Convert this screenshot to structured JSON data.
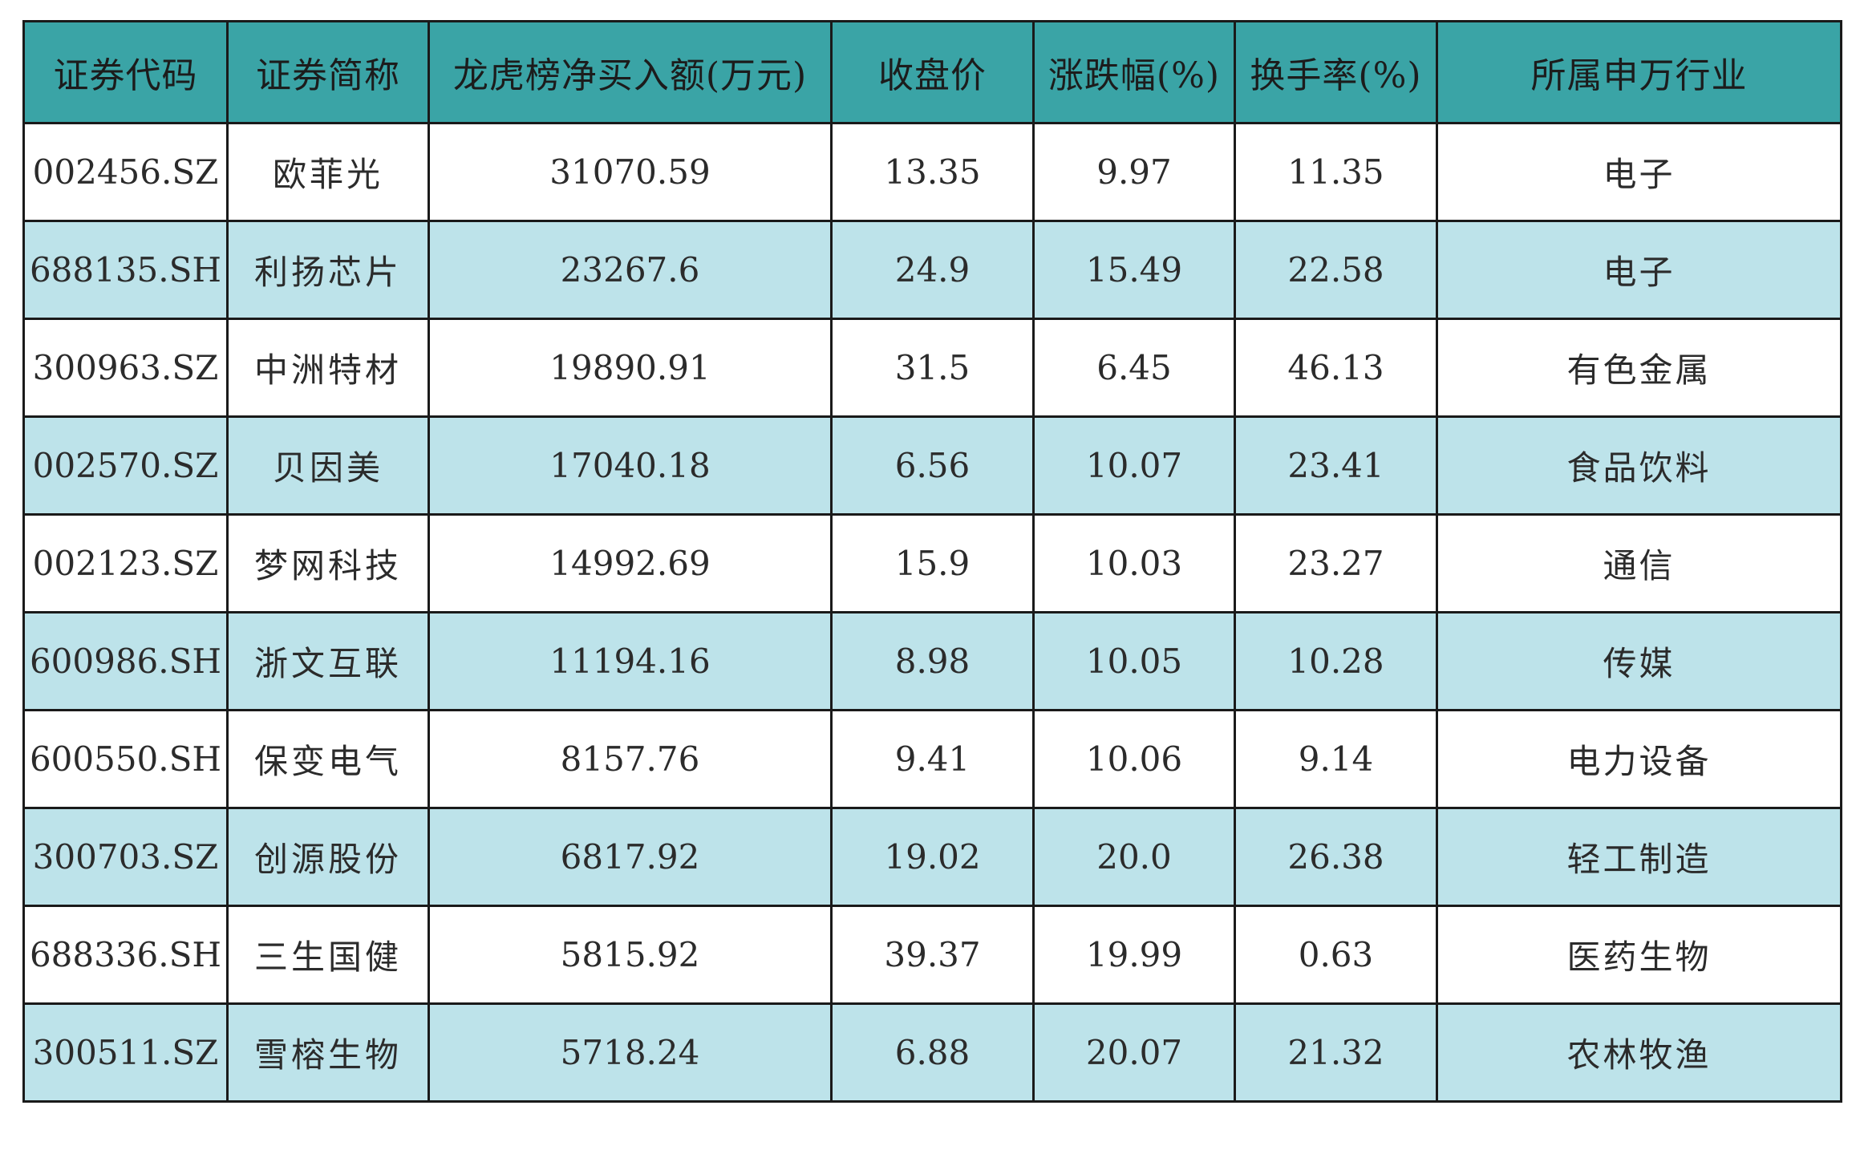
{
  "table": {
    "headers": [
      "证券代码",
      "证券简称",
      "龙虎榜净买入额(万元)",
      "收盘价",
      "涨跌幅(%)",
      "换手率(%)",
      "所属申万行业"
    ],
    "rows": [
      [
        "002456.SZ",
        "欧菲光",
        "31070.59",
        "13.35",
        "9.97",
        "11.35",
        "电子"
      ],
      [
        "688135.SH",
        "利扬芯片",
        "23267.6",
        "24.9",
        "15.49",
        "22.58",
        "电子"
      ],
      [
        "300963.SZ",
        "中洲特材",
        "19890.91",
        "31.5",
        "6.45",
        "46.13",
        "有色金属"
      ],
      [
        "002570.SZ",
        "贝因美",
        "17040.18",
        "6.56",
        "10.07",
        "23.41",
        "食品饮料"
      ],
      [
        "002123.SZ",
        "梦网科技",
        "14992.69",
        "15.9",
        "10.03",
        "23.27",
        "通信"
      ],
      [
        "600986.SH",
        "浙文互联",
        "11194.16",
        "8.98",
        "10.05",
        "10.28",
        "传媒"
      ],
      [
        "600550.SH",
        "保变电气",
        "8157.76",
        "9.41",
        "10.06",
        "9.14",
        "电力设备"
      ],
      [
        "300703.SZ",
        "创源股份",
        "6817.92",
        "19.02",
        "20.0",
        "26.38",
        "轻工制造"
      ],
      [
        "688336.SH",
        "三生国健",
        "5815.92",
        "39.37",
        "19.99",
        "0.63",
        "医药生物"
      ],
      [
        "300511.SZ",
        "雪榕生物",
        "5718.24",
        "6.88",
        "20.07",
        "21.32",
        "农林牧渔"
      ]
    ]
  },
  "colors": {
    "header_background": "#3aa4a6",
    "stripe_background": "#bde3ea",
    "row_background": "#ffffff",
    "border": "#1a1a1a"
  }
}
